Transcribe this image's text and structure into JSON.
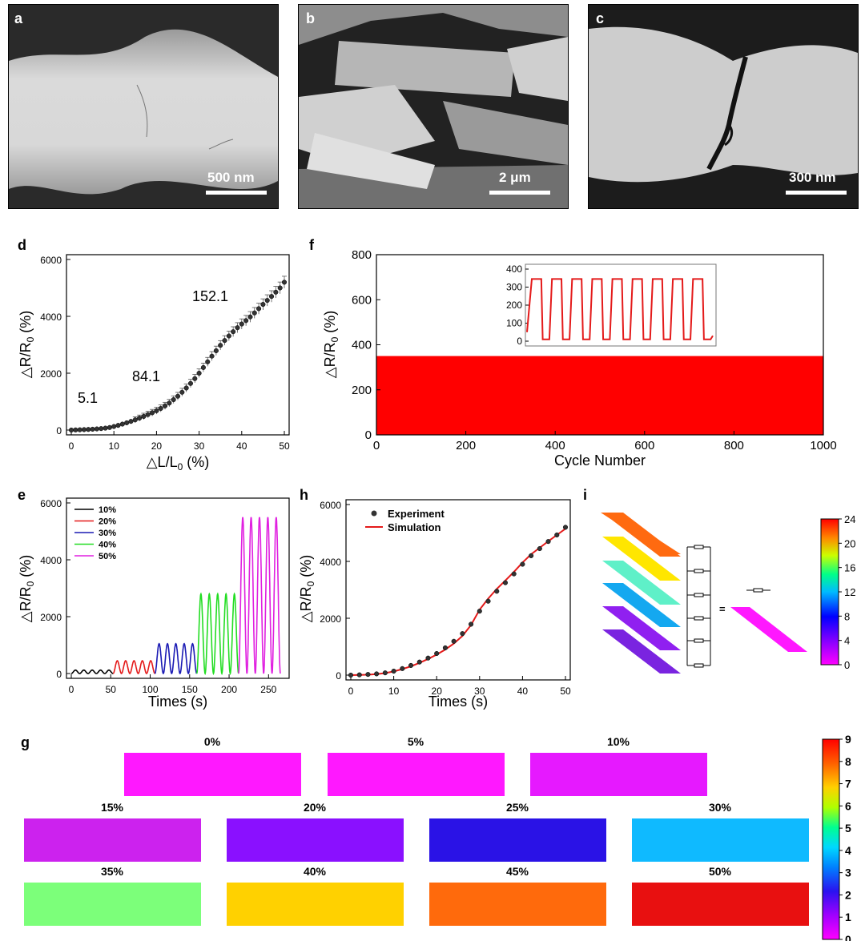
{
  "panels": {
    "a": {
      "letter": "a",
      "scale": "500 nm"
    },
    "b": {
      "letter": "b",
      "scale": "2 μm"
    },
    "c": {
      "letter": "c",
      "scale": "300 nm"
    },
    "d": {
      "letter": "d"
    },
    "e": {
      "letter": "e"
    },
    "f": {
      "letter": "f"
    },
    "g": {
      "letter": "g"
    },
    "h": {
      "letter": "h"
    },
    "i": {
      "letter": "i"
    }
  },
  "colors": {
    "red": "#e41a1a",
    "black": "#000000",
    "blue": "#1a1ab4",
    "green": "#22dd22",
    "magenta": "#e020e0",
    "s0": "#ff18ff",
    "s5": "#ff18ff",
    "s10": "#e619ff",
    "s15": "#cc22ee",
    "s20": "#8a10ff",
    "s25": "#2a12e6",
    "s30": "#0fbaff",
    "s35": "#7cff7a",
    "s40": "#ffd100",
    "s45": "#ff6a0c",
    "s50": "#e81010"
  },
  "chart_data": [
    {
      "id": "d",
      "type": "scatter",
      "xlabel": "△L/L",
      "xlabel_sub": "0",
      "xlabel_unit": " (%)",
      "ylabel": "△R/R",
      "ylabel_sub": "0",
      "ylabel_unit": " (%)",
      "xlim": [
        0,
        50
      ],
      "ylim": [
        0,
        6000
      ],
      "xticks": [
        "0",
        "10",
        "20",
        "30",
        "40",
        "50"
      ],
      "yticks": [
        "0",
        "2000",
        "4000",
        "6000"
      ],
      "annotations": [
        "5.1",
        "84.1",
        "152.1"
      ],
      "x": [
        0,
        1,
        2,
        3,
        4,
        5,
        6,
        7,
        8,
        9,
        10,
        11,
        12,
        13,
        14,
        15,
        16,
        17,
        18,
        19,
        20,
        21,
        22,
        23,
        24,
        25,
        26,
        27,
        28,
        29,
        30,
        31,
        32,
        33,
        34,
        35,
        36,
        37,
        38,
        39,
        40,
        41,
        42,
        43,
        44,
        45,
        46,
        47,
        48,
        49,
        50
      ],
      "y": [
        0,
        5,
        10,
        16,
        22,
        30,
        40,
        52,
        68,
        90,
        125,
        165,
        210,
        255,
        305,
        360,
        420,
        480,
        545,
        610,
        680,
        760,
        850,
        950,
        1070,
        1190,
        1330,
        1480,
        1640,
        1810,
        2000,
        2200,
        2400,
        2600,
        2790,
        2980,
        3150,
        3310,
        3460,
        3600,
        3730,
        3850,
        3980,
        4120,
        4270,
        4420,
        4560,
        4700,
        4850,
        5000,
        5200
      ]
    },
    {
      "id": "f",
      "type": "line",
      "xlabel": "Cycle Number",
      "ylabel": "△R/R",
      "ylabel_sub": "0",
      "ylabel_unit": " (%)",
      "xlim": [
        0,
        1000
      ],
      "ylim": [
        0,
        800
      ],
      "xticks": [
        "0",
        "200",
        "400",
        "600",
        "800",
        "1000"
      ],
      "yticks": [
        "0",
        "200",
        "400",
        "600",
        "800"
      ],
      "band": [
        0,
        350
      ],
      "inset": {
        "yticks": [
          "0",
          "100",
          "200",
          "300",
          "400"
        ],
        "ylim": [
          0,
          400
        ],
        "cycles": 9,
        "peak": 345
      }
    },
    {
      "id": "e",
      "type": "line",
      "xlabel": "Times (s)",
      "ylabel": "△R/R",
      "ylabel_sub": "0",
      "ylabel_unit": " (%)",
      "xlim": [
        0,
        270
      ],
      "ylim": [
        0,
        6000
      ],
      "xticks": [
        "0",
        "50",
        "100",
        "150",
        "200",
        "250"
      ],
      "yticks": [
        "0",
        "2000",
        "4000",
        "6000"
      ],
      "series": [
        {
          "name": "10%",
          "start": 0,
          "end": 53,
          "amplitude": 120
        },
        {
          "name": "20%",
          "start": 53,
          "end": 106,
          "amplitude": 450
        },
        {
          "name": "30%",
          "start": 106,
          "end": 159,
          "amplitude": 1050
        },
        {
          "name": "40%",
          "start": 159,
          "end": 212,
          "amplitude": 2800
        },
        {
          "name": "50%",
          "start": 212,
          "end": 265,
          "amplitude": 5500
        }
      ]
    },
    {
      "id": "h",
      "type": "line",
      "xlabel": "Times (s)",
      "ylabel": "△R/R",
      "ylabel_sub": "0",
      "ylabel_unit": " (%)",
      "xlim": [
        0,
        50
      ],
      "ylim": [
        0,
        6000
      ],
      "xticks": [
        "0",
        "10",
        "20",
        "30",
        "40",
        "50"
      ],
      "yticks": [
        "0",
        "2000",
        "4000",
        "6000"
      ],
      "legend": [
        "Experiment",
        "Simulation"
      ],
      "x": [
        0,
        2,
        4,
        6,
        8,
        10,
        12,
        14,
        16,
        18,
        20,
        22,
        24,
        26,
        28,
        30,
        32,
        34,
        36,
        38,
        40,
        42,
        44,
        46,
        48,
        50
      ],
      "experiment": [
        0,
        10,
        25,
        45,
        80,
        140,
        230,
        340,
        460,
        600,
        760,
        960,
        1190,
        1460,
        1790,
        2250,
        2600,
        2950,
        3250,
        3560,
        3900,
        4200,
        4450,
        4700,
        4930,
        5200
      ],
      "simulation": [
        0,
        5,
        15,
        35,
        70,
        130,
        210,
        310,
        430,
        570,
        720,
        900,
        1110,
        1380,
        1760,
        2300,
        2690,
        3030,
        3330,
        3630,
        3960,
        4250,
        4480,
        4710,
        4930,
        5150
      ]
    },
    {
      "id": "i",
      "type": "colorbar",
      "ticks": [
        "0",
        "4",
        "8",
        "12",
        "16",
        "20",
        "24"
      ],
      "equals": "="
    },
    {
      "id": "g",
      "type": "heatmap",
      "strains": [
        "0%",
        "5%",
        "10%",
        "15%",
        "20%",
        "25%",
        "30%",
        "35%",
        "40%",
        "45%",
        "50%"
      ],
      "colorbar_ticks": [
        "0",
        "1",
        "2",
        "3",
        "4",
        "5",
        "6",
        "7",
        "8",
        "9"
      ]
    }
  ]
}
